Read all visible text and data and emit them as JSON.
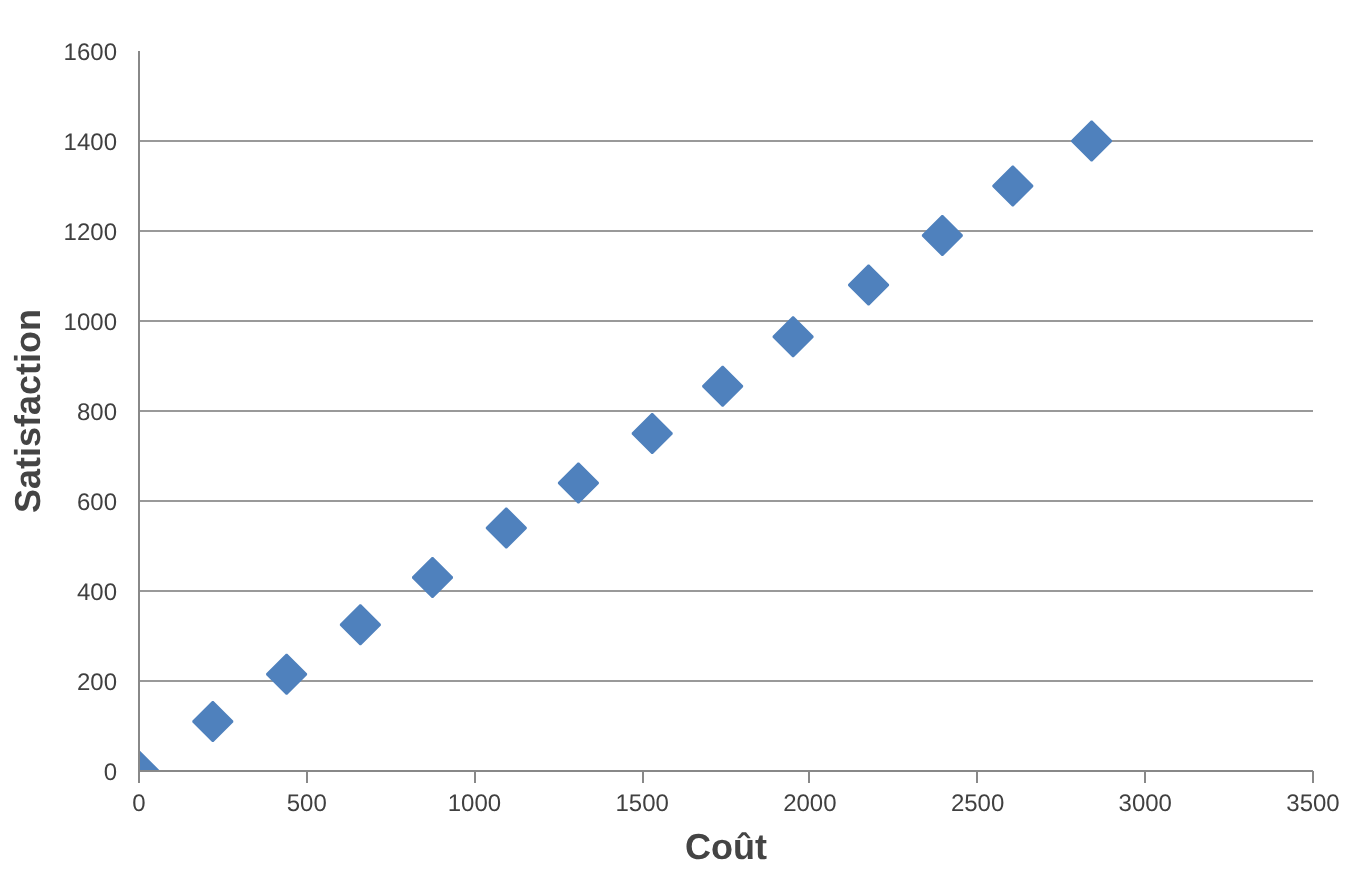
{
  "chart_data": {
    "type": "scatter",
    "xlabel": "Coût",
    "ylabel": "Satisfaction",
    "x": [
      0,
      220,
      440,
      660,
      875,
      1095,
      1310,
      1530,
      1740,
      1950,
      2175,
      2395,
      2605,
      2840
    ],
    "series": [
      {
        "color": "#4f81bd",
        "values": [
          0,
          110,
          215,
          325,
          430,
          540,
          640,
          750,
          855,
          965,
          1080,
          1190,
          1300,
          1400
        ]
      }
    ],
    "xlim": [
      0,
      3500
    ],
    "xticks": [
      0,
      500,
      1000,
      1500,
      2000,
      2500,
      3000,
      3500
    ],
    "ylim": [
      0,
      1600
    ],
    "yticks": [
      0,
      200,
      400,
      600,
      800,
      1000,
      1200,
      1400,
      1600
    ],
    "grid": "y",
    "marker": "diamond"
  }
}
